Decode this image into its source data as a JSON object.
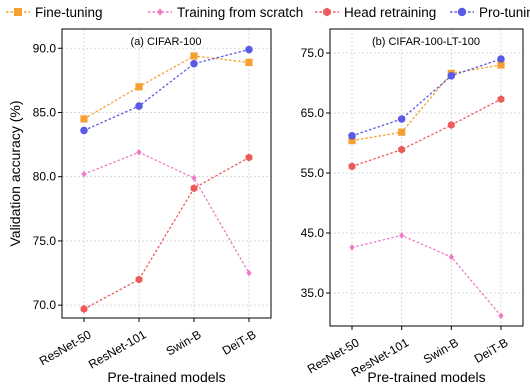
{
  "legend": [
    {
      "label": "Fine-tuning",
      "color": "#f5a030",
      "marker": "square"
    },
    {
      "label": "Training from scratch",
      "color": "#f07ac8",
      "marker": "diamond"
    },
    {
      "label": "Head retraining",
      "color": "#ee5a5a",
      "marker": "hexagon"
    },
    {
      "label": "Pro-tuning",
      "color": "#5a5ae6",
      "marker": "circle"
    }
  ],
  "chart_data": [
    {
      "type": "line",
      "title": "(a) CIFAR-100",
      "xlabel": "Pre-trained models",
      "ylabel": "Validation accuracy (%)",
      "categories": [
        "ResNet-50",
        "ResNet-101",
        "Swin-B",
        "DeiT-B"
      ],
      "ylim": [
        69.0,
        91.5
      ],
      "yticks": [
        70.0,
        75.0,
        80.0,
        85.0,
        90.0
      ],
      "ytick_labels": [
        "70.0",
        "75.0",
        "80.0",
        "85.0",
        "90.0"
      ],
      "grid": true,
      "series": [
        {
          "name": "Fine-tuning",
          "values": [
            84.5,
            87.0,
            89.4,
            88.9
          ]
        },
        {
          "name": "Training from scratch",
          "values": [
            80.2,
            81.9,
            79.9,
            72.5
          ]
        },
        {
          "name": "Head retraining",
          "values": [
            69.7,
            72.0,
            79.1,
            81.5
          ]
        },
        {
          "name": "Pro-tuning",
          "values": [
            83.6,
            85.5,
            88.8,
            89.9
          ]
        }
      ]
    },
    {
      "type": "line",
      "title": "(b) CIFAR-100-LT-100",
      "xlabel": "Pre-trained models",
      "ylabel": "",
      "categories": [
        "ResNet-50",
        "ResNet-101",
        "Swin-B",
        "DeiT-B"
      ],
      "ylim": [
        29.5,
        79.0
      ],
      "yticks": [
        35.0,
        45.0,
        55.0,
        65.0,
        75.0
      ],
      "ytick_labels": [
        "35.0",
        "45.0",
        "55.0",
        "65.0",
        "75.0"
      ],
      "grid": true,
      "series": [
        {
          "name": "Fine-tuning",
          "values": [
            60.4,
            61.8,
            71.6,
            73.0
          ]
        },
        {
          "name": "Training from scratch",
          "values": [
            42.6,
            44.6,
            41.0,
            31.2
          ]
        },
        {
          "name": "Head retraining",
          "values": [
            56.1,
            58.9,
            63.0,
            67.3
          ]
        },
        {
          "name": "Pro-tuning",
          "values": [
            61.2,
            64.0,
            71.2,
            74.0
          ]
        }
      ]
    }
  ]
}
